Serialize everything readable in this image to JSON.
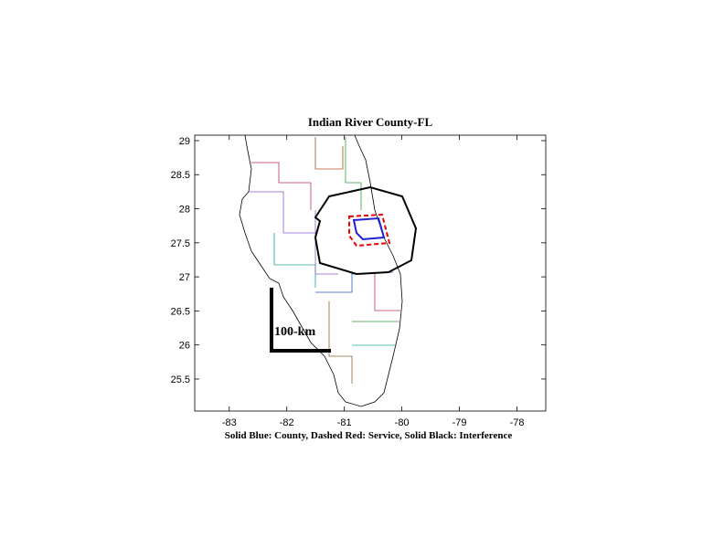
{
  "chart_data": {
    "type": "map",
    "title": "Indian River County-FL",
    "xlabel": "Solid Blue: County, Dashed Red: Service, Solid Black: Interference",
    "annotation": "100-km",
    "xlim": [
      -83.6,
      -77.5
    ],
    "ylim": [
      25.03,
      29.08
    ],
    "xticks": [
      -83,
      -82,
      -81,
      -80,
      -79,
      -78
    ],
    "yticks": [
      25.5,
      26,
      26.5,
      27,
      27.5,
      28,
      28.5,
      29
    ]
  }
}
